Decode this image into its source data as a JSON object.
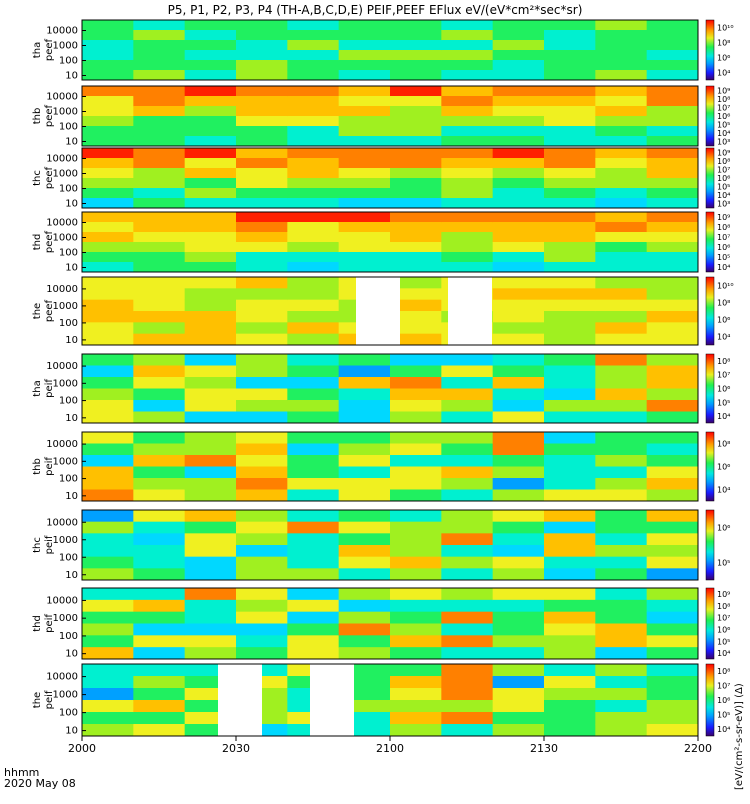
{
  "chart_data": {
    "type": "heatmap",
    "title": "P5, P1, P2, P3, P4 (TH-A,B,C,D,E) PEIF,PEEF EFlux eV/(eV*cm²*sec*sr)",
    "xlabel": "hhmm",
    "date_label": "2020 May 08",
    "x_ticks": [
      "2000",
      "2030",
      "2100",
      "2130",
      "2200"
    ],
    "y_ticks": [
      "10",
      "100",
      "1000",
      "10000"
    ],
    "colorbar_unit": "[eV/(cm²-s-sr-eV)] (Δ)",
    "panels": [
      {
        "label": "tha peef",
        "colorbar_ticks": [
          "10⁴",
          "10⁶",
          "10⁸",
          "10¹⁰"
        ]
      },
      {
        "label": "thb peef",
        "colorbar_ticks": [
          "10³",
          "10⁴",
          "10⁵",
          "10⁶",
          "10⁷",
          "10⁸",
          "10⁹"
        ]
      },
      {
        "label": "thc peef",
        "colorbar_ticks": [
          "10³",
          "10⁴",
          "10⁵",
          "10⁶",
          "10⁷",
          "10⁸",
          "10⁹"
        ]
      },
      {
        "label": "thd peef",
        "colorbar_ticks": [
          "10⁴",
          "10⁵",
          "10⁶",
          "10⁷",
          "10⁸",
          "10⁹"
        ]
      },
      {
        "label": "the peef",
        "colorbar_ticks": [
          "10⁴",
          "10⁶",
          "10⁸",
          "10¹⁰"
        ]
      },
      {
        "label": "tha peif",
        "colorbar_ticks": [
          "10⁴",
          "10⁵",
          "10⁶",
          "10⁷",
          "10⁸"
        ]
      },
      {
        "label": "thb peif",
        "colorbar_ticks": [
          "10⁴",
          "10⁶",
          "10⁸"
        ]
      },
      {
        "label": "thc peif",
        "colorbar_ticks": [
          "10⁵",
          "10⁶"
        ]
      },
      {
        "label": "thd peif",
        "colorbar_ticks": [
          "10⁴",
          "10⁵",
          "10⁶",
          "10⁷",
          "10⁸",
          "10⁹"
        ]
      },
      {
        "label": "the peif",
        "colorbar_ticks": [
          "10⁴",
          "10⁵",
          "10⁶",
          "10⁷",
          "10⁸"
        ]
      }
    ]
  }
}
